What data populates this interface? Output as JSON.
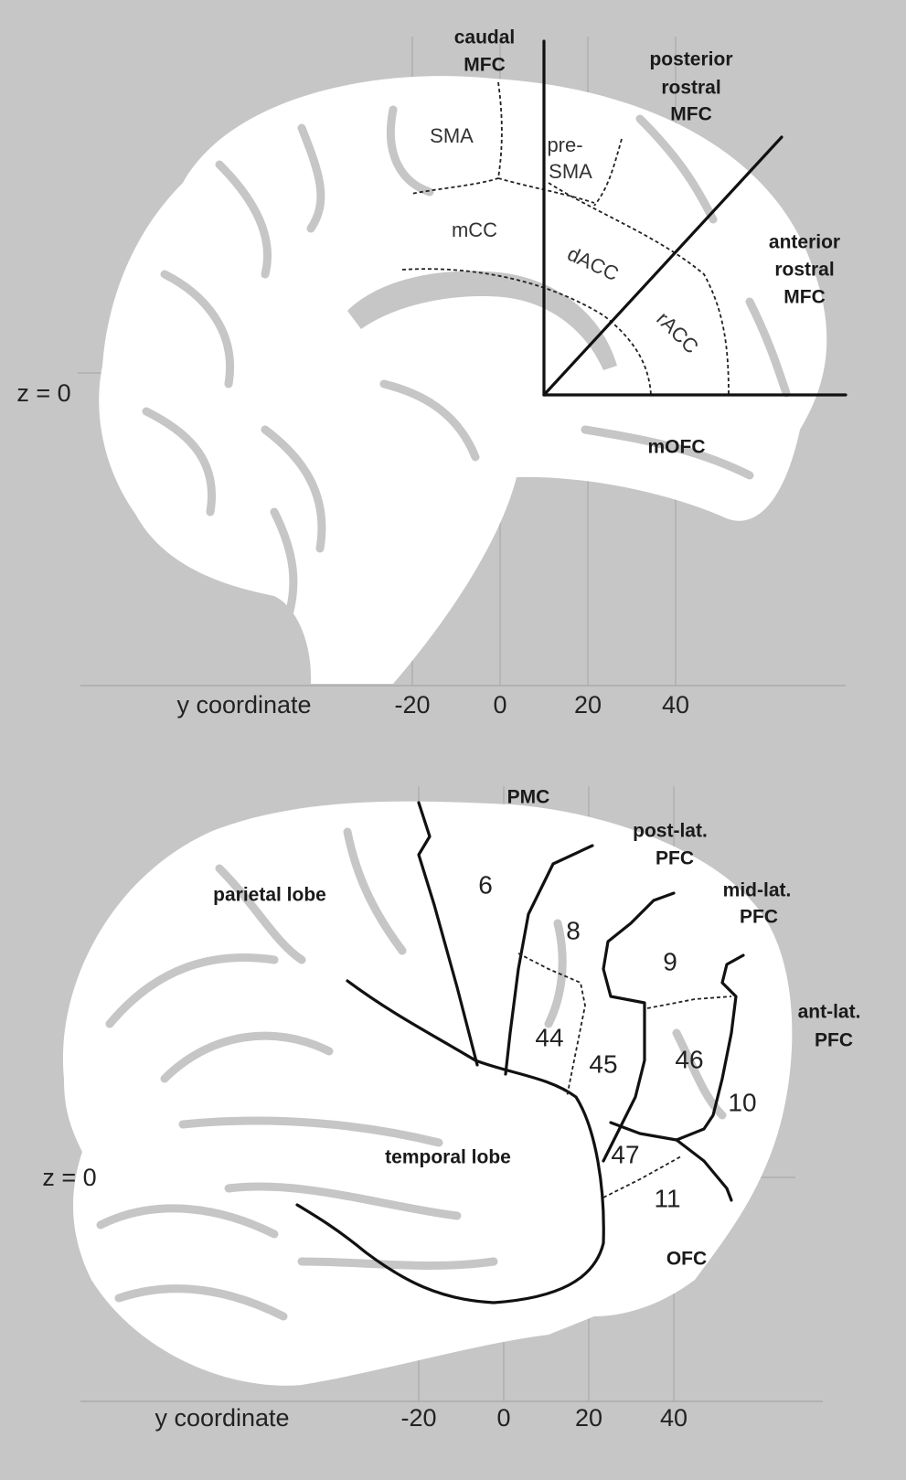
{
  "medial_view": {
    "regions": [
      {
        "lines": [
          "caudal",
          "MFC"
        ]
      },
      {
        "lines": [
          "posterior",
          "rostral",
          "MFC"
        ]
      },
      {
        "lines": [
          "anterior",
          "rostral",
          "MFC"
        ]
      },
      {
        "lines": [
          "mOFC"
        ]
      }
    ],
    "areas": [
      {
        "lines": [
          "SMA"
        ]
      },
      {
        "lines": [
          "pre-",
          "SMA"
        ]
      },
      {
        "lines": [
          "mCC"
        ]
      },
      {
        "lines": [
          "dACC"
        ]
      },
      {
        "lines": [
          "rACC"
        ]
      }
    ],
    "z_label": "z = 0",
    "axis": {
      "label": "y coordinate",
      "ticks": [
        -20,
        0,
        20,
        40
      ]
    }
  },
  "lateral_view": {
    "regions": [
      {
        "lines": [
          "PMC"
        ]
      },
      {
        "lines": [
          "post-lat.",
          "PFC"
        ]
      },
      {
        "lines": [
          "mid-lat.",
          "PFC"
        ]
      },
      {
        "lines": [
          "ant-lat.",
          "PFC"
        ]
      },
      {
        "lines": [
          "parietal lobe"
        ]
      },
      {
        "lines": [
          "temporal lobe"
        ]
      },
      {
        "lines": [
          "OFC"
        ]
      }
    ],
    "areas": [
      "6",
      "8",
      "9",
      "44",
      "45",
      "46",
      "10",
      "47",
      "11"
    ],
    "z_label": "z = 0",
    "axis": {
      "label": "y coordinate",
      "ticks": [
        -20,
        0,
        20,
        40
      ]
    }
  }
}
